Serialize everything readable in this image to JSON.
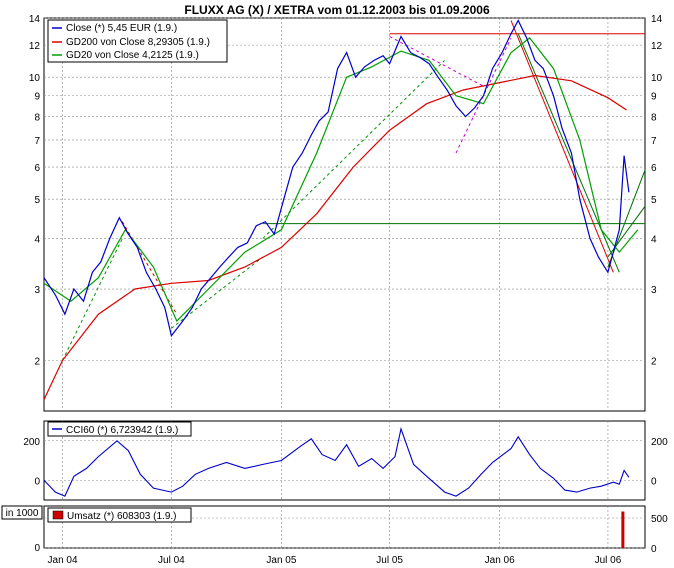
{
  "chart_data": [
    {
      "type": "line",
      "title": "FLUXX AG (X) / XETRA vom 01.12.2003 bis 01.09.2006",
      "y_scale": "log",
      "ylim": [
        1.5,
        14
      ],
      "y_ticks": [
        2,
        3,
        4,
        5,
        6,
        7,
        8,
        9,
        10,
        12,
        14
      ],
      "x_ticks": [
        "Jan 04",
        "Jul 04",
        "Jan 05",
        "Jul 05",
        "Jan 06",
        "Jul 06"
      ],
      "x_tick_dates": [
        "2004-01-01",
        "2004-07-01",
        "2005-01-01",
        "2005-07-01",
        "2006-01-01",
        "2006-07-01"
      ],
      "x_range": [
        "2003-12-01",
        "2006-09-01"
      ],
      "grid": true,
      "legend_position": "top-left",
      "series": [
        {
          "name": "Close (*) 5,45 EUR (1.9.)",
          "color": "#0000cc",
          "points": [
            [
              "2003-12-01",
              3.2
            ],
            [
              "2003-12-20",
              2.9
            ],
            [
              "2004-01-05",
              2.6
            ],
            [
              "2004-01-20",
              3.0
            ],
            [
              "2004-02-05",
              2.8
            ],
            [
              "2004-02-20",
              3.3
            ],
            [
              "2004-03-05",
              3.5
            ],
            [
              "2004-03-20",
              4.0
            ],
            [
              "2004-04-05",
              4.5
            ],
            [
              "2004-04-20",
              4.1
            ],
            [
              "2004-05-05",
              3.8
            ],
            [
              "2004-05-20",
              3.3
            ],
            [
              "2004-06-05",
              3.0
            ],
            [
              "2004-06-20",
              2.7
            ],
            [
              "2004-07-01",
              2.3
            ],
            [
              "2004-07-20",
              2.5
            ],
            [
              "2004-08-05",
              2.7
            ],
            [
              "2004-08-20",
              3.0
            ],
            [
              "2004-09-05",
              3.2
            ],
            [
              "2004-09-20",
              3.4
            ],
            [
              "2004-10-05",
              3.6
            ],
            [
              "2004-10-20",
              3.8
            ],
            [
              "2004-11-05",
              3.9
            ],
            [
              "2004-11-20",
              4.3
            ],
            [
              "2004-12-05",
              4.4
            ],
            [
              "2004-12-20",
              4.1
            ],
            [
              "2005-01-05",
              5.0
            ],
            [
              "2005-01-20",
              6.0
            ],
            [
              "2005-02-05",
              6.5
            ],
            [
              "2005-02-20",
              7.2
            ],
            [
              "2005-03-05",
              7.8
            ],
            [
              "2005-03-20",
              8.2
            ],
            [
              "2005-04-05",
              10.5
            ],
            [
              "2005-04-20",
              11.5
            ],
            [
              "2005-05-05",
              10.0
            ],
            [
              "2005-05-20",
              10.6
            ],
            [
              "2005-06-05",
              11.0
            ],
            [
              "2005-06-20",
              11.3
            ],
            [
              "2005-07-01",
              10.8
            ],
            [
              "2005-07-20",
              12.6
            ],
            [
              "2005-08-05",
              11.5
            ],
            [
              "2005-08-20",
              11.2
            ],
            [
              "2005-09-05",
              10.8
            ],
            [
              "2005-09-20",
              10.0
            ],
            [
              "2005-10-05",
              9.3
            ],
            [
              "2005-10-20",
              8.5
            ],
            [
              "2005-11-05",
              8.0
            ],
            [
              "2005-11-20",
              8.4
            ],
            [
              "2005-12-05",
              9.0
            ],
            [
              "2005-12-20",
              10.5
            ],
            [
              "2006-01-05",
              11.5
            ],
            [
              "2006-01-20",
              12.8
            ],
            [
              "2006-02-01",
              13.8
            ],
            [
              "2006-02-15",
              12.5
            ],
            [
              "2006-03-01",
              11.0
            ],
            [
              "2006-03-15",
              10.5
            ],
            [
              "2006-04-01",
              9.0
            ],
            [
              "2006-04-15",
              7.5
            ],
            [
              "2006-05-01",
              6.5
            ],
            [
              "2006-05-15",
              5.0
            ],
            [
              "2006-06-01",
              4.0
            ],
            [
              "2006-06-15",
              3.6
            ],
            [
              "2006-07-01",
              3.3
            ],
            [
              "2006-07-10",
              3.7
            ],
            [
              "2006-07-20",
              4.2
            ],
            [
              "2006-07-28",
              6.4
            ],
            [
              "2006-08-05",
              5.2
            ]
          ]
        },
        {
          "name": "GD200 von Close 8,29305 (1.9.)",
          "color": "#dd0000",
          "points": [
            [
              "2003-12-01",
              1.6
            ],
            [
              "2004-01-01",
              2.0
            ],
            [
              "2004-03-01",
              2.6
            ],
            [
              "2004-05-01",
              3.0
            ],
            [
              "2004-07-01",
              3.1
            ],
            [
              "2004-09-01",
              3.15
            ],
            [
              "2004-11-01",
              3.4
            ],
            [
              "2005-01-01",
              3.8
            ],
            [
              "2005-03-01",
              4.6
            ],
            [
              "2005-05-01",
              6.0
            ],
            [
              "2005-07-01",
              7.4
            ],
            [
              "2005-09-01",
              8.6
            ],
            [
              "2005-11-01",
              9.3
            ],
            [
              "2006-01-01",
              9.7
            ],
            [
              "2006-03-01",
              10.1
            ],
            [
              "2006-05-01",
              9.8
            ],
            [
              "2006-07-01",
              8.9
            ],
            [
              "2006-08-01",
              8.3
            ]
          ]
        },
        {
          "name": "GD20 von Close 4,2125 (1.9.)",
          "color": "#00a000",
          "points": [
            [
              "2003-12-01",
              3.1
            ],
            [
              "2004-01-15",
              2.8
            ],
            [
              "2004-03-01",
              3.2
            ],
            [
              "2004-04-15",
              4.2
            ],
            [
              "2004-06-01",
              3.4
            ],
            [
              "2004-07-10",
              2.5
            ],
            [
              "2004-09-01",
              3.0
            ],
            [
              "2004-11-01",
              3.7
            ],
            [
              "2005-01-01",
              4.2
            ],
            [
              "2005-03-01",
              6.5
            ],
            [
              "2005-04-20",
              10.0
            ],
            [
              "2005-06-01",
              10.6
            ],
            [
              "2005-07-20",
              11.6
            ],
            [
              "2005-09-05",
              11.0
            ],
            [
              "2005-10-20",
              9.0
            ],
            [
              "2005-12-05",
              8.6
            ],
            [
              "2006-01-20",
              11.5
            ],
            [
              "2006-02-20",
              12.5
            ],
            [
              "2006-04-01",
              10.5
            ],
            [
              "2006-05-15",
              7.0
            ],
            [
              "2006-06-20",
              4.2
            ],
            [
              "2006-07-20",
              3.7
            ],
            [
              "2006-08-20",
              4.2
            ]
          ]
        }
      ],
      "trendlines": [
        {
          "color": "#dd0000",
          "style": "solid",
          "from": [
            "2005-07-01",
            12.8
          ],
          "to": [
            "2006-09-01",
            12.8
          ]
        },
        {
          "color": "#dd0000",
          "style": "solid",
          "from": [
            "2006-01-20",
            13.8
          ],
          "to": [
            "2006-07-10",
            3.3
          ]
        },
        {
          "color": "#007000",
          "style": "solid",
          "from": [
            "2004-12-01",
            4.35
          ],
          "to": [
            "2006-09-01",
            4.35
          ]
        },
        {
          "color": "#007000",
          "style": "solid",
          "from": [
            "2006-02-01",
            12.8
          ],
          "to": [
            "2006-07-20",
            3.3
          ]
        },
        {
          "color": "#007000",
          "style": "solid",
          "from": [
            "2006-07-01",
            3.4
          ],
          "to": [
            "2006-09-01",
            5.9
          ]
        },
        {
          "color": "#007000",
          "style": "solid",
          "from": [
            "2006-07-01",
            3.6
          ],
          "to": [
            "2006-09-01",
            4.8
          ]
        },
        {
          "color": "#cc0000",
          "style": "dashed",
          "from": [
            "2004-04-10",
            4.4
          ],
          "to": [
            "2004-07-10",
            2.6
          ]
        },
        {
          "color": "#009000",
          "style": "dashed",
          "from": [
            "2004-01-01",
            2.0
          ],
          "to": [
            "2004-04-10",
            4.0
          ]
        },
        {
          "color": "#009000",
          "style": "dashed",
          "from": [
            "2004-07-01",
            2.4
          ],
          "to": [
            "2004-12-01",
            3.6
          ]
        },
        {
          "color": "#009000",
          "style": "dashed",
          "from": [
            "2004-12-01",
            4.0
          ],
          "to": [
            "2005-10-01",
            11.0
          ]
        },
        {
          "color": "#cc00cc",
          "style": "dashed",
          "from": [
            "2005-07-01",
            12.6
          ],
          "to": [
            "2005-12-05",
            9.5
          ]
        },
        {
          "color": "#cc00cc",
          "style": "dashed",
          "from": [
            "2005-10-20",
            6.5
          ],
          "to": [
            "2006-01-20",
            12.5
          ]
        }
      ]
    },
    {
      "type": "line",
      "ylim": [
        -100,
        300
      ],
      "y_ticks": [
        0,
        200
      ],
      "legend_position": "top-left",
      "series": [
        {
          "name": "CCI60 (*) 6,723942 (1.9.)",
          "color": "#0000cc",
          "points": [
            [
              "2003-12-01",
              0
            ],
            [
              "2003-12-20",
              -60
            ],
            [
              "2004-01-05",
              -80
            ],
            [
              "2004-01-20",
              20
            ],
            [
              "2004-02-10",
              60
            ],
            [
              "2004-03-01",
              120
            ],
            [
              "2004-04-01",
              200
            ],
            [
              "2004-04-20",
              150
            ],
            [
              "2004-05-10",
              30
            ],
            [
              "2004-06-01",
              -40
            ],
            [
              "2004-07-01",
              -60
            ],
            [
              "2004-07-20",
              -30
            ],
            [
              "2004-08-10",
              30
            ],
            [
              "2004-09-01",
              60
            ],
            [
              "2004-10-01",
              90
            ],
            [
              "2004-11-01",
              60
            ],
            [
              "2004-12-01",
              80
            ],
            [
              "2005-01-01",
              100
            ],
            [
              "2005-02-01",
              170
            ],
            [
              "2005-02-20",
              210
            ],
            [
              "2005-03-10",
              130
            ],
            [
              "2005-04-01",
              100
            ],
            [
              "2005-04-20",
              180
            ],
            [
              "2005-05-10",
              70
            ],
            [
              "2005-06-01",
              110
            ],
            [
              "2005-06-20",
              60
            ],
            [
              "2005-07-10",
              120
            ],
            [
              "2005-07-20",
              260
            ],
            [
              "2005-08-10",
              80
            ],
            [
              "2005-09-01",
              20
            ],
            [
              "2005-10-01",
              -60
            ],
            [
              "2005-10-20",
              -80
            ],
            [
              "2005-11-10",
              -40
            ],
            [
              "2005-12-01",
              30
            ],
            [
              "2005-12-20",
              90
            ],
            [
              "2006-01-20",
              160
            ],
            [
              "2006-02-01",
              220
            ],
            [
              "2006-02-20",
              130
            ],
            [
              "2006-03-10",
              60
            ],
            [
              "2006-04-01",
              10
            ],
            [
              "2006-04-20",
              -50
            ],
            [
              "2006-05-10",
              -60
            ],
            [
              "2006-06-01",
              -40
            ],
            [
              "2006-06-20",
              -30
            ],
            [
              "2006-07-10",
              -10
            ],
            [
              "2006-07-20",
              -20
            ],
            [
              "2006-07-28",
              50
            ],
            [
              "2006-08-05",
              15
            ]
          ]
        }
      ]
    },
    {
      "type": "bar",
      "ylabel": "in 1000",
      "ylim": [
        0,
        700
      ],
      "y_ticks": [
        0,
        500
      ],
      "legend_position": "top-left",
      "series": [
        {
          "name": "Umsatz (*) 608303 (1.9.)",
          "color": "#cc0000",
          "points": [
            [
              "2006-07-26",
              608.3
            ]
          ]
        }
      ]
    }
  ]
}
